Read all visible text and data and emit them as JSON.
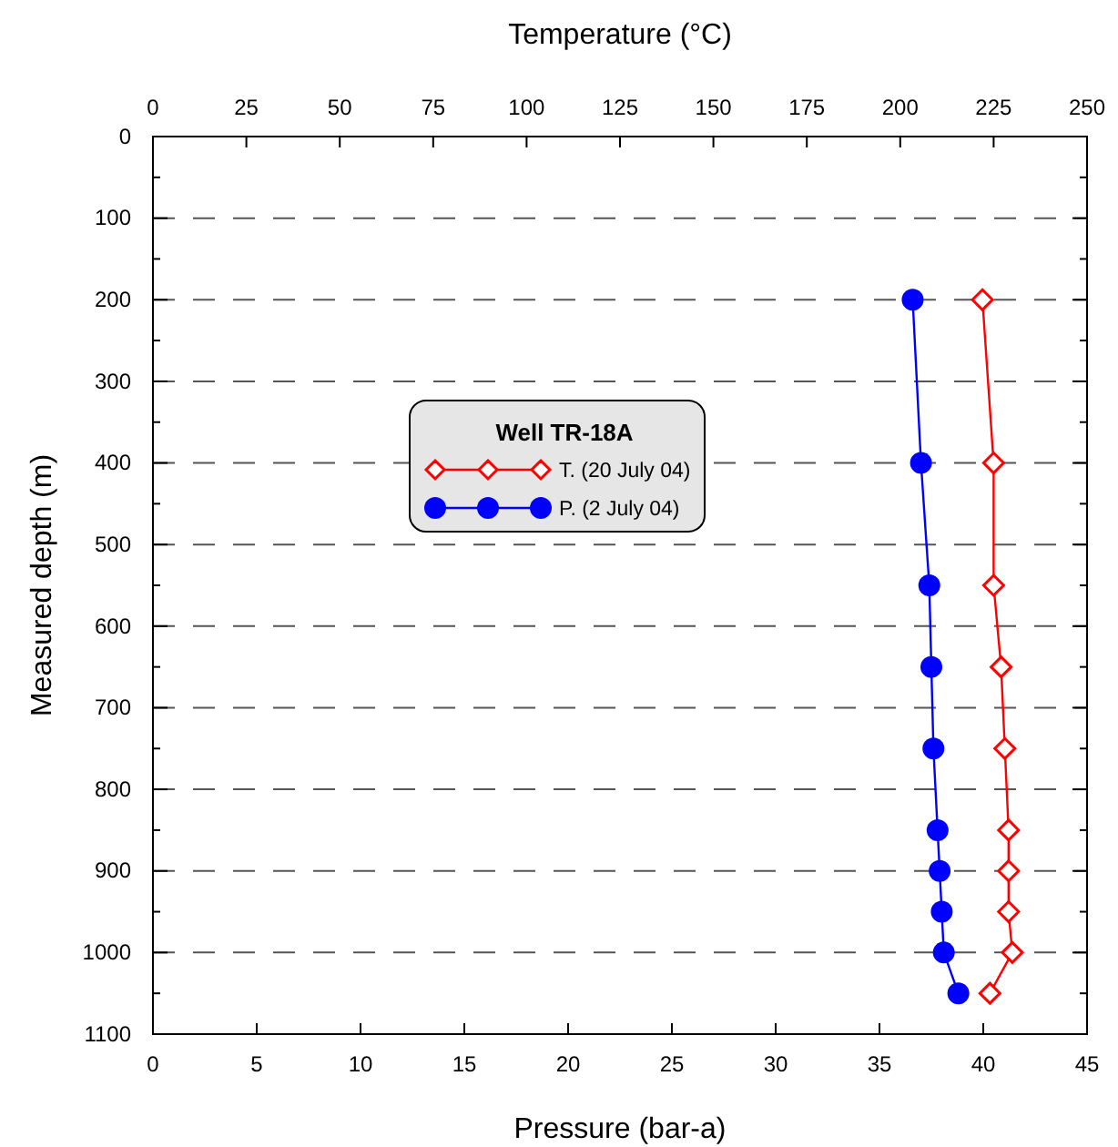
{
  "chart_data": {
    "type": "line",
    "xlabel": "Pressure (bar-a)",
    "x2label": "Temperature (°C)",
    "ylabel": "Measured depth (m)",
    "legend_title": "Well TR-18A",
    "legend": "left",
    "xlim": [
      0,
      45
    ],
    "xticks": [
      0,
      5,
      10,
      15,
      20,
      25,
      30,
      35,
      40,
      45
    ],
    "x2lim": [
      0,
      250
    ],
    "x2ticks": [
      0,
      25,
      50,
      75,
      100,
      125,
      150,
      175,
      200,
      225,
      250
    ],
    "ylim": [
      1100,
      0
    ],
    "yticks": [
      0,
      {
        "value": 50,
        "label": null
      },
      100,
      {
        "value": 150,
        "label": null
      },
      200,
      {
        "value": 250,
        "label": null
      },
      300,
      {
        "value": 350,
        "label": null
      },
      400,
      {
        "value": 450,
        "label": null
      },
      500,
      {
        "value": 550,
        "label": null
      },
      600,
      {
        "value": 650,
        "label": null
      },
      700,
      {
        "value": 750,
        "label": null
      },
      800,
      {
        "value": 850,
        "label": null
      },
      900,
      {
        "value": 950,
        "label": null
      },
      1000,
      {
        "value": 1050,
        "label": null
      },
      1100
    ],
    "grid": "y",
    "line_style": "solid",
    "series": [
      {
        "name": "T. (20 July 04)",
        "color": "#ff0000",
        "axis": "x2",
        "marker": "diamond",
        "x": [
          222,
          225,
          225,
          227,
          228,
          229,
          229,
          229,
          230,
          224
        ],
        "values": [
          200,
          400,
          550,
          650,
          750,
          850,
          900,
          950,
          1000,
          1050
        ]
      },
      {
        "name": "P. (2 July 04)",
        "color": "#0000ff",
        "marker": "circle",
        "x": [
          36.6,
          37.0,
          37.4,
          37.5,
          37.6,
          37.8,
          37.9,
          38.0,
          38.1,
          38.8
        ],
        "values": [
          200,
          400,
          550,
          650,
          750,
          850,
          900,
          950,
          1000,
          1050
        ]
      }
    ]
  }
}
